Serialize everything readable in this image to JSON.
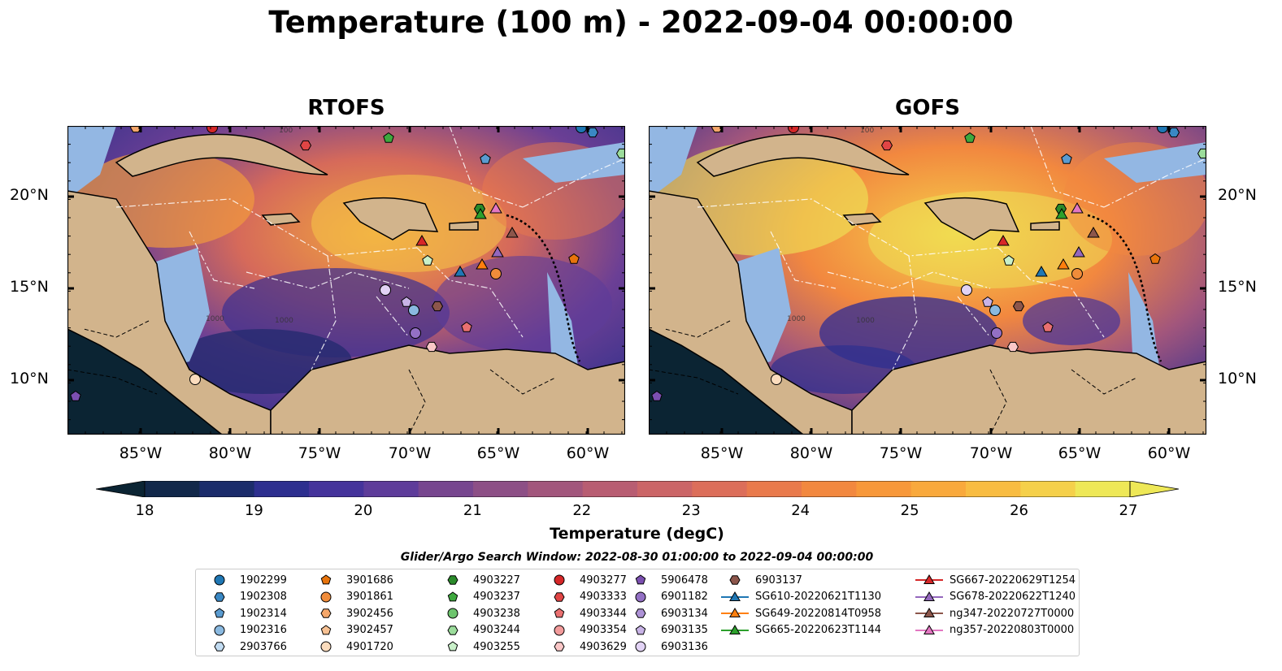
{
  "title": "Temperature (100 m) - 2022-09-04 00:00:00",
  "panels": [
    {
      "title": "RTOFS"
    },
    {
      "title": "GOFS"
    }
  ],
  "map": {
    "lat_ticks": [
      "20°N",
      "15°N",
      "10°N"
    ],
    "lon_ticks": [
      "85°W",
      "80°W",
      "75°W",
      "70°W",
      "65°W",
      "60°W"
    ],
    "contour_labels": [
      "1000",
      "1000",
      "100"
    ],
    "colors": {
      "land": "#d2b48c",
      "shelf_water": "#93b7e3",
      "deep_cold": "#0b2433",
      "coast": "#000000"
    }
  },
  "colorbar": {
    "label": "Temperature (degC)",
    "ticks": [
      "18",
      "19",
      "20",
      "21",
      "22",
      "23",
      "24",
      "25",
      "26",
      "27"
    ],
    "colors": [
      "#0b2433",
      "#12284a",
      "#1b2c6b",
      "#2d2f8f",
      "#45339b",
      "#5e3c9a",
      "#77468f",
      "#8d4f86",
      "#a2567c",
      "#b85d72",
      "#cb6567",
      "#dc6e5a",
      "#e97a4c",
      "#f2883f",
      "#f7983a",
      "#f9a93c",
      "#f8bc42",
      "#f5d04a",
      "#eee857"
    ]
  },
  "search_window": "Glider/Argo Search Window: 2022-08-30 01:00:00 to 2022-09-04 00:00:00",
  "legend": [
    {
      "label": "1902299",
      "marker": "circle",
      "color": "#1f77b4"
    },
    {
      "label": "1902308",
      "marker": "hexagon",
      "color": "#3a88c4"
    },
    {
      "label": "1902314",
      "marker": "pentagon",
      "color": "#5a9bd0"
    },
    {
      "label": "1902316",
      "marker": "circle",
      "color": "#8ab9e0"
    },
    {
      "label": "2903766",
      "marker": "hexagon",
      "color": "#c2dcf2"
    },
    {
      "label": "3901686",
      "marker": "pentagon",
      "color": "#e8740c"
    },
    {
      "label": "3901861",
      "marker": "circle",
      "color": "#f08c3a"
    },
    {
      "label": "3902456",
      "marker": "hexagon",
      "color": "#f5a76a"
    },
    {
      "label": "3902457",
      "marker": "pentagon",
      "color": "#f7c193"
    },
    {
      "label": "4901720",
      "marker": "circle",
      "color": "#fbdcbd"
    },
    {
      "label": "4903227",
      "marker": "hexagon",
      "color": "#2a8a2a"
    },
    {
      "label": "4903237",
      "marker": "pentagon",
      "color": "#3ea83e"
    },
    {
      "label": "4903238",
      "marker": "circle",
      "color": "#6dc46d"
    },
    {
      "label": "4903244",
      "marker": "hexagon",
      "color": "#9bdc9b"
    },
    {
      "label": "4903255",
      "marker": "pentagon",
      "color": "#c9f0c9"
    },
    {
      "label": "4903277",
      "marker": "circle",
      "color": "#d62728"
    },
    {
      "label": "4903333",
      "marker": "hexagon",
      "color": "#e04545"
    },
    {
      "label": "4903344",
      "marker": "pentagon",
      "color": "#ea7070"
    },
    {
      "label": "4903354",
      "marker": "circle",
      "color": "#f29b9b"
    },
    {
      "label": "4903629",
      "marker": "hexagon",
      "color": "#fac7c7"
    },
    {
      "label": "5906478",
      "marker": "pentagon",
      "color": "#7b4fb0"
    },
    {
      "label": "6901182",
      "marker": "circle",
      "color": "#9370c4"
    },
    {
      "label": "6903134",
      "marker": "hexagon",
      "color": "#ad92d6"
    },
    {
      "label": "6903135",
      "marker": "pentagon",
      "color": "#c8b3e6"
    },
    {
      "label": "6903136",
      "marker": "circle",
      "color": "#e2d3f5"
    },
    {
      "label": "6903137",
      "marker": "hexagon",
      "color": "#8c564b"
    },
    {
      "label": "SG610-20220621T1130",
      "marker": "triangle-line",
      "color": "#1f77b4"
    },
    {
      "label": "SG649-20220814T0958",
      "marker": "triangle-line",
      "color": "#ff7f0e"
    },
    {
      "label": "SG665-20220623T1144",
      "marker": "triangle-line",
      "color": "#2ca02c"
    },
    {
      "label": "SG667-20220629T1254",
      "marker": "triangle-line",
      "color": "#d62728"
    },
    {
      "label": "SG678-20220622T1240",
      "marker": "triangle-line",
      "color": "#9467bd"
    },
    {
      "label": "ng347-20220727T0000",
      "marker": "triangle-line",
      "color": "#8c564b"
    },
    {
      "label": "ng357-20220803T0000",
      "marker": "triangle-line",
      "color": "#e377c2"
    }
  ]
}
